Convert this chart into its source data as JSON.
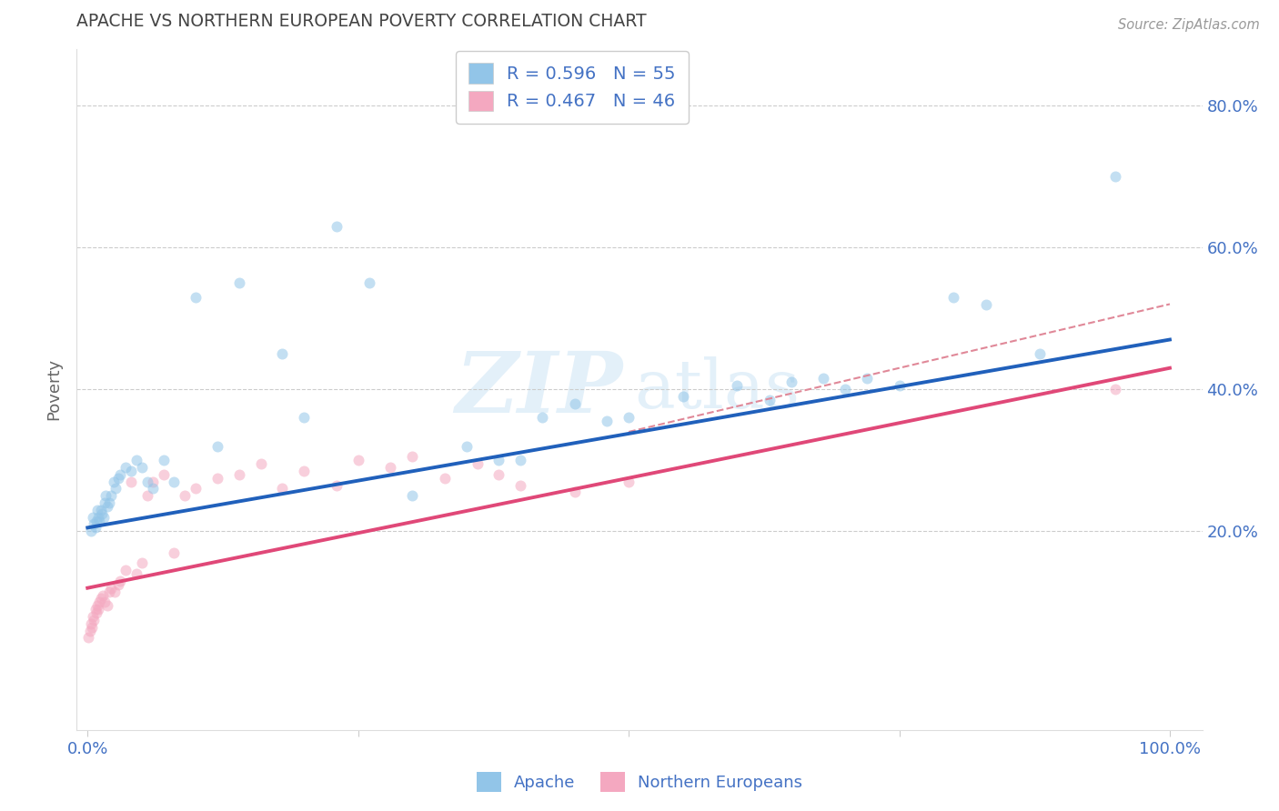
{
  "title": "APACHE VS NORTHERN EUROPEAN POVERTY CORRELATION CHART",
  "source": "Source: ZipAtlas.com",
  "ylabel": "Poverty",
  "apache_R": 0.596,
  "apache_N": 55,
  "apache_color": "#92C5E8",
  "apache_line_color": "#2060BB",
  "ne_R": 0.467,
  "ne_N": 46,
  "ne_color": "#F4A8C0",
  "ne_line_color": "#E04878",
  "ne_dash_color": "#E08898",
  "apache_x": [
    0.3,
    0.5,
    0.6,
    0.7,
    0.8,
    0.9,
    1.0,
    1.1,
    1.2,
    1.3,
    1.5,
    1.6,
    1.7,
    1.8,
    2.0,
    2.2,
    2.4,
    2.6,
    2.8,
    3.0,
    3.5,
    4.0,
    4.5,
    5.0,
    5.5,
    6.0,
    7.0,
    8.0,
    10.0,
    12.0,
    14.0,
    18.0,
    20.0,
    23.0,
    26.0,
    30.0,
    35.0,
    38.0,
    40.0,
    42.0,
    45.0,
    48.0,
    50.0,
    55.0,
    60.0,
    63.0,
    65.0,
    68.0,
    70.0,
    72.0,
    75.0,
    80.0,
    83.0,
    88.0,
    95.0
  ],
  "apache_y": [
    20.0,
    22.0,
    21.0,
    20.5,
    21.5,
    23.0,
    22.0,
    21.5,
    23.0,
    22.5,
    22.0,
    24.0,
    25.0,
    23.5,
    24.0,
    25.0,
    27.0,
    26.0,
    27.5,
    28.0,
    29.0,
    28.5,
    30.0,
    29.0,
    27.0,
    26.0,
    30.0,
    27.0,
    53.0,
    32.0,
    55.0,
    45.0,
    36.0,
    63.0,
    55.0,
    25.0,
    32.0,
    30.0,
    30.0,
    36.0,
    38.0,
    35.5,
    36.0,
    39.0,
    40.5,
    38.5,
    41.0,
    41.5,
    40.0,
    41.5,
    40.5,
    53.0,
    52.0,
    45.0,
    70.0
  ],
  "ne_x": [
    0.1,
    0.2,
    0.3,
    0.4,
    0.5,
    0.6,
    0.7,
    0.8,
    0.9,
    1.0,
    1.1,
    1.2,
    1.4,
    1.6,
    1.8,
    2.0,
    2.2,
    2.5,
    2.8,
    3.0,
    3.5,
    4.0,
    4.5,
    5.0,
    5.5,
    6.0,
    7.0,
    8.0,
    9.0,
    10.0,
    12.0,
    14.0,
    16.0,
    18.0,
    20.0,
    23.0,
    25.0,
    28.0,
    30.0,
    33.0,
    36.0,
    38.0,
    40.0,
    45.0,
    50.0,
    95.0
  ],
  "ne_y": [
    5.0,
    6.0,
    7.0,
    6.5,
    8.0,
    7.5,
    9.0,
    8.5,
    9.5,
    9.0,
    10.0,
    10.5,
    11.0,
    10.0,
    9.5,
    11.5,
    12.0,
    11.5,
    12.5,
    13.0,
    14.5,
    27.0,
    14.0,
    15.5,
    25.0,
    27.0,
    28.0,
    17.0,
    25.0,
    26.0,
    27.5,
    28.0,
    29.5,
    26.0,
    28.5,
    26.5,
    30.0,
    29.0,
    30.5,
    27.5,
    29.5,
    28.0,
    26.5,
    25.5,
    27.0,
    40.0
  ],
  "apache_reg_x0": 0,
  "apache_reg_y0": 20.5,
  "apache_reg_x1": 100,
  "apache_reg_y1": 47.0,
  "ne_reg_x0": 0,
  "ne_reg_y0": 12.0,
  "ne_reg_x1": 100,
  "ne_reg_y1": 43.0,
  "ne_dash_x0": 50,
  "ne_dash_y0": 34.0,
  "ne_dash_x1": 100,
  "ne_dash_y1": 52.0,
  "yticks": [
    0,
    20,
    40,
    60,
    80
  ],
  "ytick_labels": [
    "",
    "20.0%",
    "40.0%",
    "60.0%",
    "80.0%"
  ],
  "xticks": [
    0,
    25,
    50,
    75,
    100
  ],
  "xtick_labels": [
    "0.0%",
    "",
    "",
    "",
    "100.0%"
  ],
  "ylim": [
    -8,
    88
  ],
  "xlim": [
    -1,
    103
  ],
  "background_color": "#ffffff",
  "grid_color": "#cccccc",
  "title_color": "#444444",
  "tick_label_color": "#4472c4",
  "marker_size": 75,
  "marker_alpha": 0.55,
  "line_width": 2.8
}
